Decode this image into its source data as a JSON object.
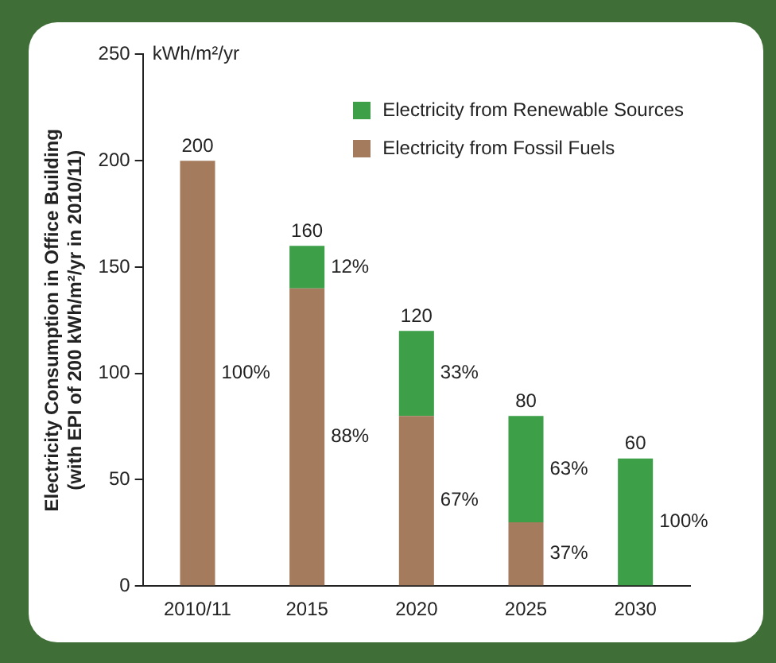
{
  "chart_data": {
    "type": "bar",
    "stacked": true,
    "ylabel": "Electricity Consumption in Office Building\n(with EPI of 200 kWh/m²/yr in 2010/11)",
    "annotations": [
      "kWh/m²/yr",
      "100%",
      "12%",
      "88%",
      "33%",
      "67%",
      "63%",
      "37%",
      "100%"
    ],
    "categories": [
      "2010/11",
      "2015",
      "2020",
      "2025",
      "2030"
    ],
    "series": [
      {
        "name": "Electricity from Fossil Fuels",
        "color": "#a57b5e",
        "values": [
          200,
          140,
          80,
          30,
          0
        ]
      },
      {
        "name": "Electricity from Renewable Sources",
        "color": "#3d9f48",
        "values": [
          0,
          20,
          40,
          50,
          60
        ]
      }
    ],
    "totals": [
      "200",
      "160",
      "120",
      "80",
      "60"
    ],
    "ylim": [
      0,
      250
    ],
    "yticks": [
      0,
      50,
      100,
      150,
      200,
      250
    ],
    "grid": false,
    "legend": "top right"
  }
}
